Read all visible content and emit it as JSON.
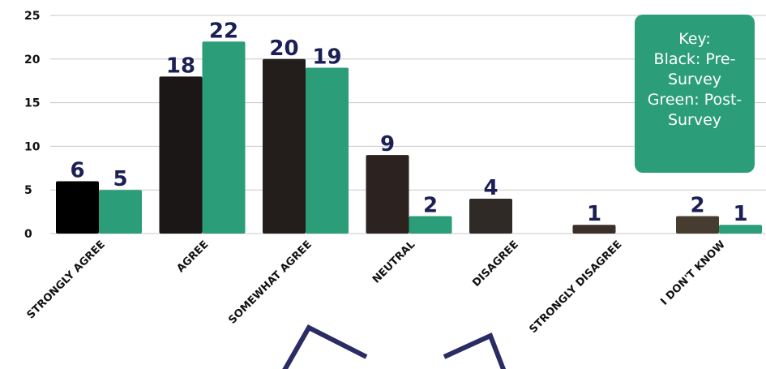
{
  "chart_data": {
    "type": "bar",
    "categories": [
      "STRONGLY AGREE",
      "AGREE",
      "SOMEWHAT AGREE",
      "NEUTRAL",
      "DISAGREE",
      "STRONGLY DISAGREE",
      "I DON'T KNOW"
    ],
    "series": [
      {
        "values": [
          6,
          18,
          20,
          9,
          4,
          1,
          2
        ]
      },
      {
        "values": [
          5,
          22,
          19,
          2,
          0,
          0,
          1
        ]
      }
    ],
    "data_labels": [
      [
        "6",
        "18",
        "20",
        "9",
        "4",
        "1",
        "2"
      ],
      [
        "5",
        "22",
        "19",
        "2",
        "",
        "",
        "1"
      ]
    ],
    "yticks": [
      0,
      5,
      10,
      15,
      20,
      25
    ],
    "ylim": [
      0,
      25
    ],
    "grid": true,
    "colors": {
      "pre": [
        "#000000",
        "#1b1716",
        "#231e1c",
        "#2c2320",
        "#302a26",
        "#3a3029",
        "#463d30"
      ],
      "post": "#2b9d78",
      "label": "#1b1f55",
      "grid": "#c8c8c8"
    }
  },
  "key": {
    "lines": [
      "Key:",
      "Black: Pre-",
      "Survey",
      "Green: Post-",
      "Survey"
    ]
  },
  "decoration": {
    "shape": "star-outline",
    "color": "#2a2c63"
  }
}
